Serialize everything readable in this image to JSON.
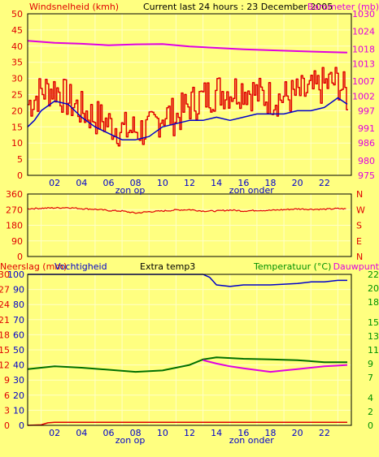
{
  "colors": {
    "background": "#ffff80",
    "grid": "#ffffc8",
    "red": "#e00000",
    "blue": "#0000cc",
    "magenta": "#e000e0",
    "green": "#007000",
    "text_green": "#009000",
    "black": "#000000"
  },
  "header": {
    "left": "Windsnelheid (kmh)",
    "center": "Current last 24 hours : 23 December 2005",
    "right": "Barometer (mb)"
  },
  "sun": {
    "rise": "zon op",
    "set": "zon onder"
  },
  "hour_labels": [
    "02",
    "04",
    "06",
    "08",
    "10",
    "12",
    "14",
    "16",
    "18",
    "20",
    "22"
  ],
  "dir_labels": [
    "N",
    "W",
    "S",
    "E",
    "N"
  ],
  "bottom_header": {
    "rain": "Neerslag (mm)",
    "humidity": "Vochtigheid",
    "extra": "Extra temp3",
    "temperature": "Temperatuur (°C)",
    "dewpoint": "Dauwpunt"
  },
  "chart_data": [
    {
      "type": "line",
      "title": "Current last 24 hours : 23 December 2005",
      "x_range_hours": [
        0,
        24
      ],
      "y_left": {
        "label": "Windsnelheid (kmh)",
        "ticks": [
          0,
          5,
          10,
          15,
          20,
          25,
          30,
          35,
          40,
          45,
          50
        ],
        "range": [
          0,
          50
        ]
      },
      "y_right": {
        "label": "Barometer (mb)",
        "ticks": [
          975,
          980,
          986,
          991,
          997,
          1002,
          1007,
          1013,
          1018,
          1024,
          1030
        ],
        "range": [
          975,
          1030
        ]
      },
      "series": [
        {
          "name": "Windsnelheid",
          "axis": "left",
          "style": "gust",
          "x": [
            0,
            1,
            2,
            3,
            4,
            5,
            6,
            7,
            8,
            9,
            10,
            11,
            12,
            13,
            14,
            15,
            16,
            17,
            18,
            19,
            20,
            21,
            22,
            23,
            23.7
          ],
          "values": [
            22,
            26,
            27,
            23,
            20,
            18,
            16,
            14,
            14,
            14,
            19,
            18,
            22,
            24,
            26,
            26,
            27,
            25,
            24,
            24,
            25,
            26,
            28,
            29,
            24
          ]
        },
        {
          "name": "Windsnelheid gemiddeld",
          "axis": "left",
          "x": [
            0,
            0.5,
            1,
            2,
            3,
            3.5,
            4,
            5,
            6,
            7,
            8,
            9,
            10,
            11,
            12,
            13,
            14,
            15,
            16,
            17,
            18,
            19,
            20,
            21,
            22,
            23,
            23.7
          ],
          "values": [
            15,
            17,
            20,
            23,
            22,
            20,
            18,
            15,
            13,
            11,
            11,
            12,
            15,
            16,
            17,
            17,
            18,
            17,
            18,
            19,
            19,
            19,
            20,
            20,
            21,
            24,
            22
          ]
        },
        {
          "name": "Barometer",
          "axis": "right",
          "x": [
            0,
            2,
            4,
            6,
            8,
            10,
            12,
            14,
            16,
            18,
            20,
            22,
            23.7
          ],
          "values": [
            1020.8,
            1020.1,
            1019.8,
            1019.3,
            1019.6,
            1019.7,
            1018.9,
            1018.4,
            1017.9,
            1017.6,
            1017.3,
            1017.0,
            1016.8
          ]
        }
      ]
    },
    {
      "type": "line",
      "x_range_hours": [
        0,
        24
      ],
      "y_left": {
        "ticks": [
          0,
          90,
          180,
          270,
          360
        ],
        "range": [
          0,
          360
        ]
      },
      "series": [
        {
          "name": "Windrichting",
          "x": [
            0,
            1,
            2,
            3,
            4,
            5,
            6,
            7,
            8,
            9,
            10,
            11,
            12,
            13,
            14,
            15,
            16,
            17,
            18,
            19,
            20,
            21,
            22,
            23,
            23.7
          ],
          "values": [
            275,
            278,
            280,
            282,
            276,
            272,
            265,
            262,
            250,
            258,
            262,
            268,
            270,
            262,
            262,
            268,
            262,
            266,
            266,
            270,
            274,
            272,
            272,
            276,
            274
          ]
        }
      ]
    },
    {
      "type": "line",
      "x_range_hours": [
        0,
        24
      ],
      "y_left": {
        "label": "Neerslag (mm)",
        "ticks": [
          0,
          3,
          6,
          9,
          12,
          15,
          18,
          21,
          24,
          27,
          30
        ],
        "range": [
          0,
          30
        ]
      },
      "y_left_2": {
        "label": "Vochtigheid",
        "ticks": [
          0,
          10,
          20,
          30,
          40,
          50,
          60,
          70,
          80,
          90,
          100
        ],
        "range": [
          0,
          100
        ]
      },
      "y_right": {
        "label": "Temperatuur (°C) Dauwpunt",
        "ticks": [
          0,
          2,
          4,
          7,
          9,
          11,
          13,
          15,
          18,
          20,
          22
        ],
        "range": [
          0,
          22
        ]
      },
      "series": [
        {
          "name": "Vochtigheid",
          "axis": "left_2",
          "x": [
            0,
            2,
            4,
            6,
            8,
            10,
            12,
            13,
            13.5,
            14,
            15,
            16,
            18,
            20,
            21,
            22,
            23,
            23.7
          ],
          "values": [
            100,
            100,
            100,
            100,
            100,
            100,
            100,
            100,
            98,
            93,
            92,
            93,
            93,
            94,
            95,
            95,
            96,
            96
          ]
        },
        {
          "name": "Neerslag",
          "axis": "left",
          "x": [
            0,
            1,
            1.5,
            2,
            4,
            6,
            8,
            10,
            12,
            14,
            16,
            18,
            20,
            22,
            23.7
          ],
          "values": [
            0,
            0.1,
            0.5,
            0.6,
            0.6,
            0.6,
            0.6,
            0.6,
            0.6,
            0.6,
            0.6,
            0.6,
            0.6,
            0.6,
            0.6
          ]
        },
        {
          "name": "Temperatuur",
          "axis": "right",
          "x": [
            0,
            1,
            2,
            4,
            6,
            8,
            10,
            12,
            13,
            14,
            15,
            16,
            18,
            20,
            22,
            23.7
          ],
          "values": [
            8.2,
            8.4,
            8.6,
            8.4,
            8.1,
            7.8,
            8.0,
            8.8,
            9.6,
            9.9,
            9.8,
            9.7,
            9.6,
            9.5,
            9.2,
            9.2
          ]
        },
        {
          "name": "Dauwpunt",
          "axis": "right",
          "x": [
            13,
            14,
            15,
            16,
            18,
            19,
            20,
            21,
            22,
            23,
            23.7
          ],
          "values": [
            9.5,
            9.0,
            8.6,
            8.3,
            7.8,
            8.0,
            8.2,
            8.4,
            8.6,
            8.7,
            8.8
          ]
        }
      ]
    }
  ]
}
